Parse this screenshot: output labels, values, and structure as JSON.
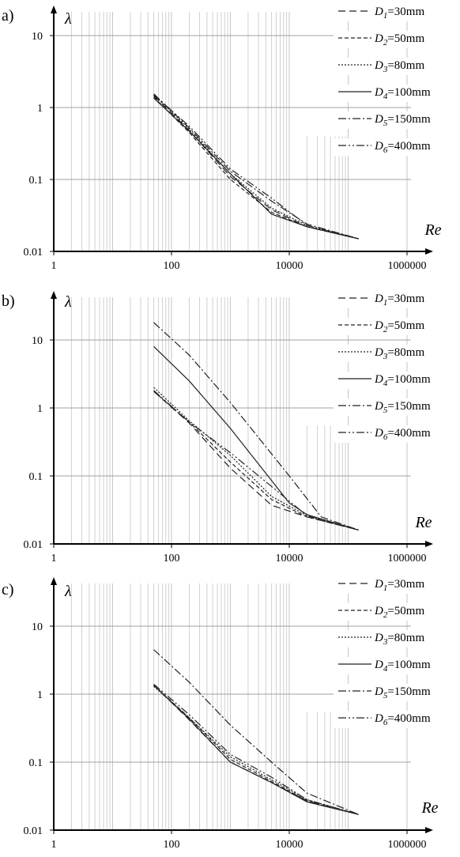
{
  "chart_data": [
    {
      "type": "line",
      "panel": "a)",
      "xlabel": "Re",
      "ylabel": "λ",
      "xscale": "log",
      "yscale": "log",
      "xlim": [
        1,
        2000000
      ],
      "ylim": [
        0.01,
        20
      ],
      "x_ticks": [
        "1",
        "100",
        "10000",
        "1000000"
      ],
      "y_ticks": [
        "0.01",
        "0.1",
        "1",
        "10"
      ],
      "grid": true,
      "legend_position": "top-right",
      "series": [
        {
          "symbol": "D",
          "index": "1",
          "name": "=30mm",
          "dash": "9,5",
          "points": [
            [
              50,
              1.45
            ],
            [
              200,
              0.48
            ],
            [
              1000,
              0.11
            ],
            [
              5000,
              0.038
            ],
            [
              20000,
              0.022
            ],
            [
              150000,
              0.015
            ]
          ]
        },
        {
          "symbol": "D",
          "index": "2",
          "name": "=50mm",
          "dash": "5,3",
          "points": [
            [
              50,
              1.4
            ],
            [
              200,
              0.45
            ],
            [
              1000,
              0.1
            ],
            [
              5000,
              0.035
            ],
            [
              20000,
              0.022
            ],
            [
              150000,
              0.015
            ]
          ]
        },
        {
          "symbol": "D",
          "index": "3",
          "name": "=80mm",
          "dash": "2,2",
          "points": [
            [
              50,
              1.5
            ],
            [
              200,
              0.5
            ],
            [
              1000,
              0.12
            ],
            [
              5000,
              0.04
            ],
            [
              20000,
              0.023
            ],
            [
              150000,
              0.015
            ]
          ]
        },
        {
          "symbol": "D",
          "index": "4",
          "name": "=100mm",
          "dash": "",
          "points": [
            [
              50,
              1.35
            ],
            [
              200,
              0.47
            ],
            [
              1000,
              0.12
            ],
            [
              5000,
              0.033
            ],
            [
              20000,
              0.022
            ],
            [
              150000,
              0.015
            ]
          ]
        },
        {
          "symbol": "D",
          "index": "5",
          "name": "=150mm",
          "dash": "10,3,2,3",
          "points": [
            [
              50,
              1.55
            ],
            [
              200,
              0.52
            ],
            [
              1000,
              0.13
            ],
            [
              5000,
              0.05
            ],
            [
              20000,
              0.024
            ],
            [
              150000,
              0.015
            ]
          ]
        },
        {
          "symbol": "D",
          "index": "6",
          "name": "=400mm",
          "dash": "10,3,2,3,2,3",
          "points": [
            [
              50,
              1.5
            ],
            [
              200,
              0.55
            ],
            [
              1000,
              0.14
            ],
            [
              5000,
              0.055
            ],
            [
              20000,
              0.023
            ],
            [
              150000,
              0.015
            ]
          ]
        }
      ]
    },
    {
      "type": "line",
      "panel": "b)",
      "xlabel": "Re",
      "ylabel": "λ",
      "xscale": "log",
      "yscale": "log",
      "xlim": [
        1,
        2000000
      ],
      "ylim": [
        0.01,
        20
      ],
      "x_ticks": [
        "1",
        "100",
        "10000",
        "1000000"
      ],
      "y_ticks": [
        "0.01",
        "0.1",
        "1",
        "10"
      ],
      "grid": true,
      "legend_position": "top-right",
      "series": [
        {
          "symbol": "D",
          "index": "1",
          "name": "=30mm",
          "dash": "9,5",
          "points": [
            [
              50,
              1.75
            ],
            [
              200,
              0.6
            ],
            [
              1000,
              0.13
            ],
            [
              5000,
              0.037
            ],
            [
              20000,
              0.025
            ],
            [
              150000,
              0.016
            ]
          ]
        },
        {
          "symbol": "D",
          "index": "2",
          "name": "=50mm",
          "dash": "5,3",
          "points": [
            [
              50,
              1.75
            ],
            [
              200,
              0.62
            ],
            [
              1000,
              0.16
            ],
            [
              5000,
              0.045
            ],
            [
              20000,
              0.025
            ],
            [
              150000,
              0.016
            ]
          ]
        },
        {
          "symbol": "D",
          "index": "3",
          "name": "=80mm",
          "dash": "2,2",
          "points": [
            [
              50,
              2.0
            ],
            [
              200,
              0.65
            ],
            [
              1000,
              0.2
            ],
            [
              5000,
              0.05
            ],
            [
              20000,
              0.026
            ],
            [
              150000,
              0.016
            ]
          ]
        },
        {
          "symbol": "D",
          "index": "4",
          "name": "=100mm",
          "dash": "",
          "points": [
            [
              50,
              8.0
            ],
            [
              200,
              2.5
            ],
            [
              1000,
              0.5
            ],
            [
              10000,
              0.04
            ],
            [
              20000,
              0.027
            ],
            [
              150000,
              0.016
            ]
          ]
        },
        {
          "symbol": "D",
          "index": "5",
          "name": "=150mm",
          "dash": "10,3,2,3",
          "points": [
            [
              50,
              18.0
            ],
            [
              200,
              6.0
            ],
            [
              1000,
              1.2
            ],
            [
              10000,
              0.1
            ],
            [
              35000,
              0.025
            ],
            [
              150000,
              0.016
            ]
          ]
        },
        {
          "symbol": "D",
          "index": "6",
          "name": "=400mm",
          "dash": "10,3,2,3,2,3",
          "points": [
            [
              50,
              1.8
            ],
            [
              200,
              0.62
            ],
            [
              1000,
              0.22
            ],
            [
              5000,
              0.07
            ],
            [
              20000,
              0.026
            ],
            [
              150000,
              0.016
            ]
          ]
        }
      ]
    },
    {
      "type": "line",
      "panel": "c)",
      "xlabel": "Re",
      "ylabel": "λ",
      "xscale": "log",
      "yscale": "log",
      "xlim": [
        1,
        2000000
      ],
      "ylim": [
        0.01,
        20
      ],
      "x_ticks": [
        "1",
        "100",
        "10000",
        "1000000"
      ],
      "y_ticks": [
        "0.01",
        "0.1",
        "1",
        "10"
      ],
      "grid": true,
      "legend_position": "top-right",
      "series": [
        {
          "symbol": "D",
          "index": "1",
          "name": "=30mm",
          "dash": "9,5",
          "points": [
            [
              50,
              1.35
            ],
            [
              200,
              0.42
            ],
            [
              1000,
              0.1
            ],
            [
              5000,
              0.05
            ],
            [
              20000,
              0.027
            ],
            [
              150000,
              0.017
            ]
          ]
        },
        {
          "symbol": "D",
          "index": "2",
          "name": "=50mm",
          "dash": "5,3",
          "points": [
            [
              50,
              1.35
            ],
            [
              200,
              0.45
            ],
            [
              1000,
              0.11
            ],
            [
              5000,
              0.052
            ],
            [
              20000,
              0.027
            ],
            [
              150000,
              0.017
            ]
          ]
        },
        {
          "symbol": "D",
          "index": "3",
          "name": "=80mm",
          "dash": "2,2",
          "points": [
            [
              50,
              1.3
            ],
            [
              200,
              0.45
            ],
            [
              1000,
              0.12
            ],
            [
              5000,
              0.055
            ],
            [
              20000,
              0.028
            ],
            [
              150000,
              0.017
            ]
          ]
        },
        {
          "symbol": "D",
          "index": "4",
          "name": "=100mm",
          "dash": "",
          "points": [
            [
              50,
              1.35
            ],
            [
              200,
              0.43
            ],
            [
              1000,
              0.1
            ],
            [
              5000,
              0.05
            ],
            [
              20000,
              0.026
            ],
            [
              150000,
              0.017
            ]
          ]
        },
        {
          "symbol": "D",
          "index": "5",
          "name": "=150mm",
          "dash": "10,3,2,3",
          "points": [
            [
              50,
              4.5
            ],
            [
              200,
              1.5
            ],
            [
              1000,
              0.35
            ],
            [
              5000,
              0.1
            ],
            [
              20000,
              0.035
            ],
            [
              150000,
              0.017
            ]
          ]
        },
        {
          "symbol": "D",
          "index": "6",
          "name": "=400mm",
          "dash": "10,3,2,3,2,3",
          "points": [
            [
              50,
              1.4
            ],
            [
              200,
              0.5
            ],
            [
              1000,
              0.13
            ],
            [
              5000,
              0.06
            ],
            [
              20000,
              0.028
            ],
            [
              150000,
              0.017
            ]
          ]
        }
      ]
    }
  ]
}
